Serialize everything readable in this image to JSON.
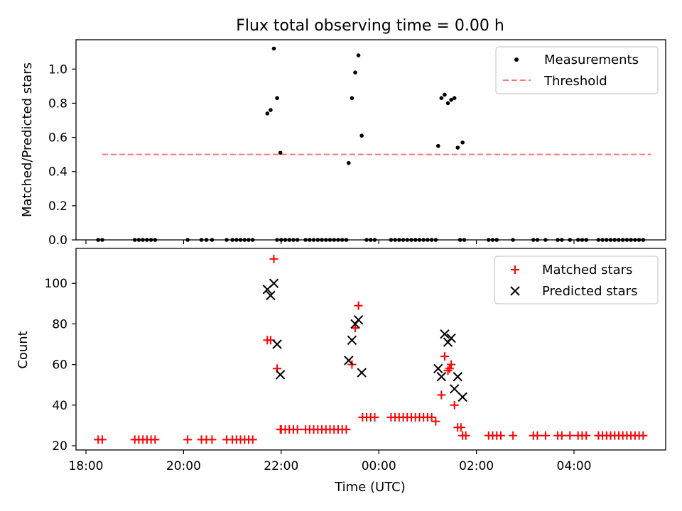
{
  "chart_data": [
    {
      "type": "scatter",
      "title": "Flux total observing time = 0.00 h",
      "ylabel": "Matched/Predicted stars",
      "xlim": [
        "18:00",
        "06:00"
      ],
      "ylim": [
        0,
        1.18
      ],
      "yticks": [
        0.0,
        0.2,
        0.4,
        0.6,
        0.8,
        1.0
      ],
      "ytick_labels": [
        "0.0",
        "0.2",
        "0.4",
        "0.6",
        "0.8",
        "1.0"
      ],
      "legend_position": "top-right",
      "series": [
        {
          "name": "Measurements",
          "color": "#000000",
          "marker": "dot",
          "points": [
            [
              "18:15",
              0
            ],
            [
              "18:20",
              0
            ],
            [
              "19:00",
              0
            ],
            [
              "19:05",
              0
            ],
            [
              "19:10",
              0
            ],
            [
              "19:15",
              0
            ],
            [
              "19:20",
              0
            ],
            [
              "19:25",
              0
            ],
            [
              "20:05",
              0
            ],
            [
              "20:22",
              0
            ],
            [
              "20:28",
              0
            ],
            [
              "20:35",
              0
            ],
            [
              "20:53",
              0
            ],
            [
              "21:00",
              0
            ],
            [
              "21:05",
              0
            ],
            [
              "21:10",
              0
            ],
            [
              "21:15",
              0
            ],
            [
              "21:20",
              0
            ],
            [
              "21:25",
              0
            ],
            [
              "21:43",
              0.74
            ],
            [
              "21:47",
              0.76
            ],
            [
              "21:51",
              1.12
            ],
            [
              "21:55",
              0.83
            ],
            [
              "21:59",
              0.51
            ],
            [
              "21:55",
              0
            ],
            [
              "22:00",
              0
            ],
            [
              "22:05",
              0
            ],
            [
              "22:10",
              0
            ],
            [
              "22:15",
              0
            ],
            [
              "22:20",
              0
            ],
            [
              "22:30",
              0
            ],
            [
              "22:35",
              0
            ],
            [
              "22:40",
              0
            ],
            [
              "22:45",
              0
            ],
            [
              "22:50",
              0
            ],
            [
              "22:55",
              0
            ],
            [
              "23:00",
              0
            ],
            [
              "23:05",
              0
            ],
            [
              "23:10",
              0
            ],
            [
              "23:15",
              0
            ],
            [
              "23:20",
              0
            ],
            [
              "23:23",
              0.45
            ],
            [
              "23:27",
              0.83
            ],
            [
              "23:31",
              0.98
            ],
            [
              "23:35",
              1.08
            ],
            [
              "23:39",
              0.61
            ],
            [
              "23:45",
              0
            ],
            [
              "23:50",
              0
            ],
            [
              "23:55",
              0
            ],
            [
              "00:15",
              0
            ],
            [
              "00:20",
              0
            ],
            [
              "00:25",
              0
            ],
            [
              "00:30",
              0
            ],
            [
              "00:35",
              0
            ],
            [
              "00:40",
              0
            ],
            [
              "00:45",
              0
            ],
            [
              "00:50",
              0
            ],
            [
              "00:55",
              0
            ],
            [
              "01:00",
              0
            ],
            [
              "01:05",
              0
            ],
            [
              "01:10",
              0
            ],
            [
              "01:13",
              0.55
            ],
            [
              "01:17",
              0.83
            ],
            [
              "01:21",
              0.85
            ],
            [
              "01:25",
              0.8
            ],
            [
              "01:29",
              0.82
            ],
            [
              "01:33",
              0.83
            ],
            [
              "01:37",
              0.54
            ],
            [
              "01:43",
              0.57
            ],
            [
              "01:40",
              0
            ],
            [
              "01:45",
              0
            ],
            [
              "02:15",
              0
            ],
            [
              "02:20",
              0
            ],
            [
              "02:25",
              0
            ],
            [
              "02:45",
              0
            ],
            [
              "03:10",
              0
            ],
            [
              "03:15",
              0
            ],
            [
              "03:25",
              0
            ],
            [
              "03:40",
              0
            ],
            [
              "03:45",
              0
            ],
            [
              "03:55",
              0
            ],
            [
              "04:05",
              0
            ],
            [
              "04:10",
              0
            ],
            [
              "04:15",
              0
            ],
            [
              "04:30",
              0
            ],
            [
              "04:35",
              0
            ],
            [
              "04:40",
              0
            ],
            [
              "04:45",
              0
            ],
            [
              "04:50",
              0
            ],
            [
              "04:55",
              0
            ],
            [
              "05:00",
              0
            ],
            [
              "05:05",
              0
            ],
            [
              "05:10",
              0
            ],
            [
              "05:15",
              0
            ],
            [
              "05:20",
              0
            ],
            [
              "05:25",
              0
            ]
          ]
        },
        {
          "name": "Threshold",
          "color": "#ff7777",
          "style": "dashed",
          "points": [
            [
              "18:20",
              0.5
            ],
            [
              "05:35",
              0.5
            ]
          ]
        }
      ]
    },
    {
      "type": "scatter",
      "ylabel": "Count",
      "xlabel": "Time (UTC)",
      "xticks": [
        "18:00",
        "20:00",
        "22:00",
        "00:00",
        "02:00",
        "04:00"
      ],
      "xlim": [
        "18:00",
        "06:00"
      ],
      "ylim": [
        19,
        117
      ],
      "yticks": [
        20,
        40,
        60,
        80,
        100
      ],
      "ytick_labels": [
        "20",
        "40",
        "60",
        "80",
        "100"
      ],
      "legend_position": "top-right",
      "series": [
        {
          "name": "Matched stars",
          "color": "#ff0000",
          "marker": "plus",
          "points": [
            [
              "18:15",
              23
            ],
            [
              "18:20",
              23
            ],
            [
              "19:00",
              23
            ],
            [
              "19:05",
              23
            ],
            [
              "19:10",
              23
            ],
            [
              "19:15",
              23
            ],
            [
              "19:20",
              23
            ],
            [
              "19:25",
              23
            ],
            [
              "20:05",
              23
            ],
            [
              "20:22",
              23
            ],
            [
              "20:28",
              23
            ],
            [
              "20:35",
              23
            ],
            [
              "20:53",
              23
            ],
            [
              "21:00",
              23
            ],
            [
              "21:05",
              23
            ],
            [
              "21:10",
              23
            ],
            [
              "21:15",
              23
            ],
            [
              "21:20",
              23
            ],
            [
              "21:25",
              23
            ],
            [
              "21:43",
              72
            ],
            [
              "21:47",
              72
            ],
            [
              "21:51",
              112
            ],
            [
              "21:55",
              58
            ],
            [
              "21:59",
              28
            ],
            [
              "22:00",
              28
            ],
            [
              "22:05",
              28
            ],
            [
              "22:10",
              28
            ],
            [
              "22:15",
              28
            ],
            [
              "22:20",
              28
            ],
            [
              "22:30",
              28
            ],
            [
              "22:35",
              28
            ],
            [
              "22:40",
              28
            ],
            [
              "22:45",
              28
            ],
            [
              "22:50",
              28
            ],
            [
              "22:55",
              28
            ],
            [
              "23:00",
              28
            ],
            [
              "23:05",
              28
            ],
            [
              "23:10",
              28
            ],
            [
              "23:15",
              28
            ],
            [
              "23:20",
              28
            ],
            [
              "23:27",
              60
            ],
            [
              "23:31",
              78
            ],
            [
              "23:35",
              89
            ],
            [
              "23:40",
              34
            ],
            [
              "23:45",
              34
            ],
            [
              "23:50",
              34
            ],
            [
              "23:55",
              34
            ],
            [
              "00:15",
              34
            ],
            [
              "00:20",
              34
            ],
            [
              "00:25",
              34
            ],
            [
              "00:30",
              34
            ],
            [
              "00:35",
              34
            ],
            [
              "00:40",
              34
            ],
            [
              "00:45",
              34
            ],
            [
              "00:50",
              34
            ],
            [
              "00:55",
              34
            ],
            [
              "01:00",
              34
            ],
            [
              "01:05",
              34
            ],
            [
              "01:10",
              32
            ],
            [
              "01:17",
              45
            ],
            [
              "01:21",
              64
            ],
            [
              "01:25",
              57
            ],
            [
              "01:27",
              58
            ],
            [
              "01:29",
              60
            ],
            [
              "01:33",
              40
            ],
            [
              "01:37",
              29
            ],
            [
              "01:41",
              29
            ],
            [
              "01:43",
              25
            ],
            [
              "01:47",
              25
            ],
            [
              "02:15",
              25
            ],
            [
              "02:20",
              25
            ],
            [
              "02:25",
              25
            ],
            [
              "02:30",
              25
            ],
            [
              "02:45",
              25
            ],
            [
              "03:10",
              25
            ],
            [
              "03:15",
              25
            ],
            [
              "03:25",
              25
            ],
            [
              "03:40",
              25
            ],
            [
              "03:45",
              25
            ],
            [
              "03:55",
              25
            ],
            [
              "04:05",
              25
            ],
            [
              "04:10",
              25
            ],
            [
              "04:15",
              25
            ],
            [
              "04:30",
              25
            ],
            [
              "04:35",
              25
            ],
            [
              "04:40",
              25
            ],
            [
              "04:45",
              25
            ],
            [
              "04:50",
              25
            ],
            [
              "04:55",
              25
            ],
            [
              "05:00",
              25
            ],
            [
              "05:05",
              25
            ],
            [
              "05:10",
              25
            ],
            [
              "05:15",
              25
            ],
            [
              "05:20",
              25
            ],
            [
              "05:25",
              25
            ]
          ]
        },
        {
          "name": "Predicted stars",
          "color": "#000000",
          "marker": "x",
          "points": [
            [
              "21:43",
              97
            ],
            [
              "21:47",
              94
            ],
            [
              "21:51",
              100
            ],
            [
              "21:55",
              70
            ],
            [
              "21:59",
              55
            ],
            [
              "23:23",
              62
            ],
            [
              "23:27",
              72
            ],
            [
              "23:31",
              80
            ],
            [
              "23:35",
              82
            ],
            [
              "23:39",
              56
            ],
            [
              "01:13",
              58
            ],
            [
              "01:17",
              54
            ],
            [
              "01:21",
              75
            ],
            [
              "01:25",
              71
            ],
            [
              "01:29",
              73
            ],
            [
              "01:33",
              48
            ],
            [
              "01:37",
              54
            ],
            [
              "01:43",
              44
            ]
          ]
        }
      ]
    }
  ]
}
